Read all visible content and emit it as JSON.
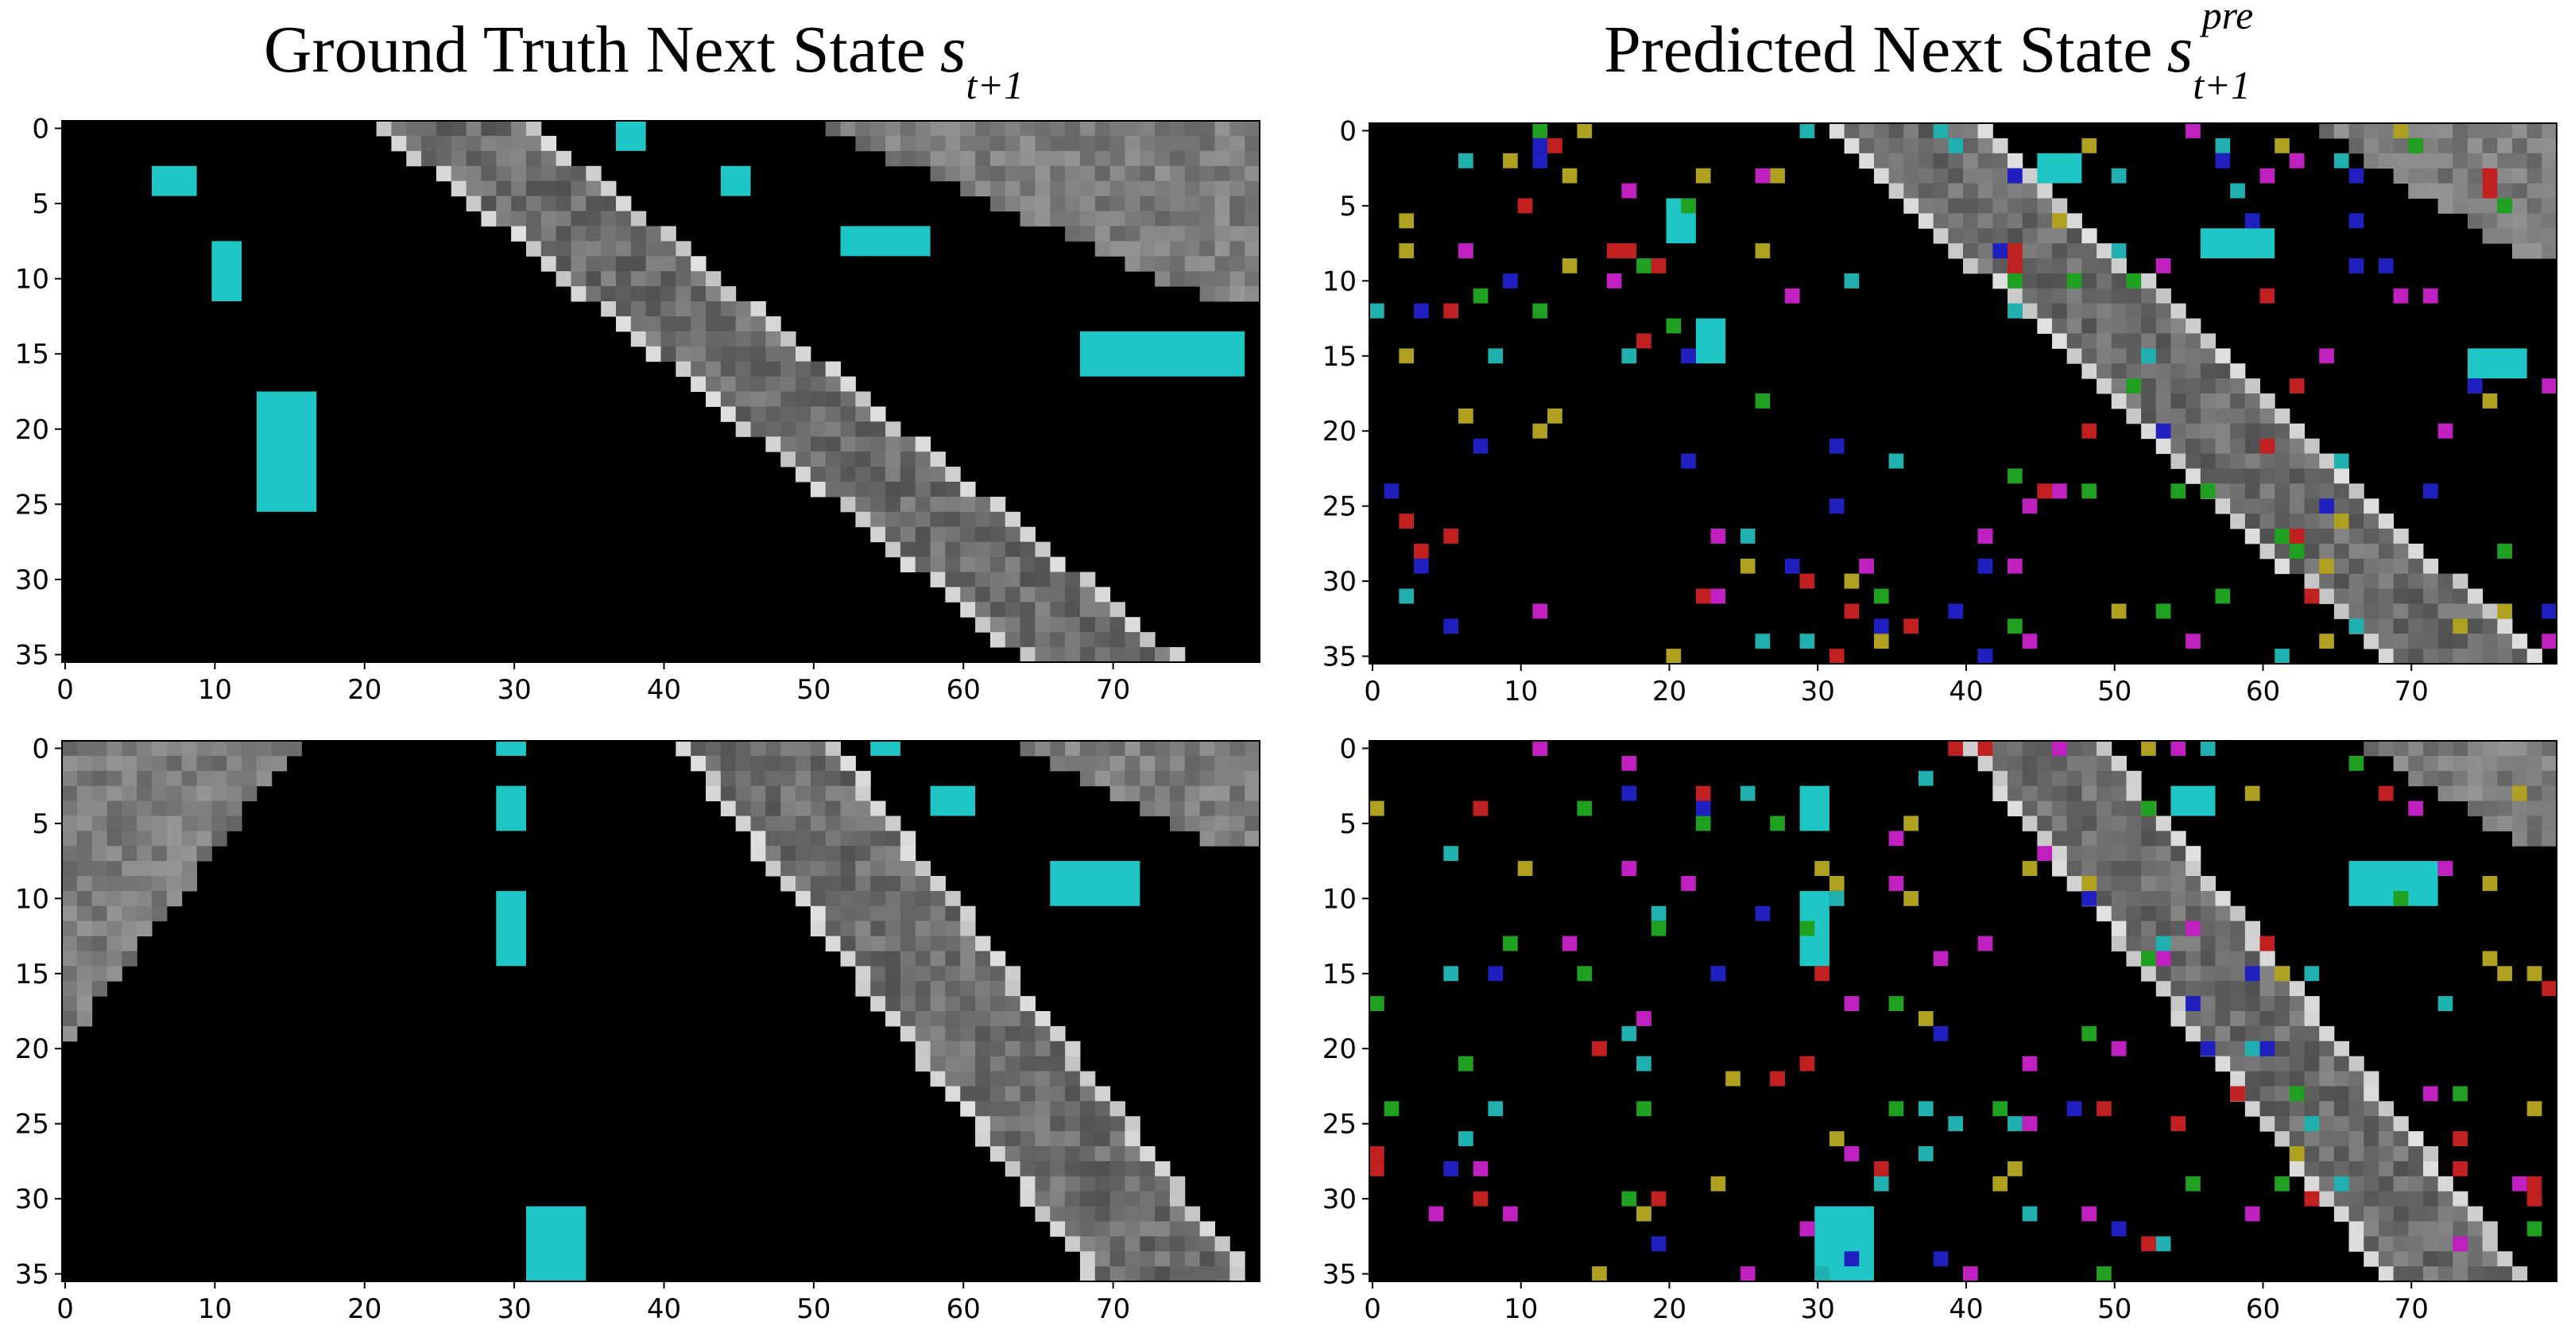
{
  "titles": {
    "left": {
      "text": "Ground Truth Next State",
      "symbol": "s",
      "subscript": "t+1",
      "superscript": ""
    },
    "right": {
      "text": "Predicted Next State",
      "symbol": "s",
      "subscript": "t+1",
      "superscript": "pre"
    }
  },
  "axes": {
    "x_ticks": [
      "0",
      "10",
      "20",
      "30",
      "40",
      "50",
      "60",
      "70"
    ],
    "y_ticks": [
      "0",
      "5",
      "10",
      "15",
      "20",
      "25",
      "30",
      "35"
    ],
    "x_range": [
      0,
      80
    ],
    "y_range": [
      0,
      36
    ]
  },
  "colors": {
    "background": "#000000",
    "road": "#8a8a8a",
    "car": "#1fc6c6",
    "noise": [
      "#b0a020",
      "#c020c0",
      "#2020c0",
      "#20a020",
      "#c02020",
      "#20b0b0"
    ]
  },
  "panels": [
    {
      "name": "top-left",
      "noise": false,
      "roads": [
        {
          "type": "band",
          "x1": 21,
          "x2": 31,
          "y_top": 0,
          "y_bot": 36,
          "dx_per_row": 1.22
        }
      ],
      "corner_triangles": [
        {
          "side": "right",
          "x_start": 51,
          "rows": 12
        }
      ],
      "cars": [
        {
          "x": 6,
          "y": 3,
          "w": 3,
          "h": 2
        },
        {
          "x": 10,
          "y": 8,
          "w": 2,
          "h": 4
        },
        {
          "x": 13,
          "y": 18,
          "w": 4,
          "h": 8
        },
        {
          "x": 37,
          "y": 0,
          "w": 2,
          "h": 2
        },
        {
          "x": 44,
          "y": 3,
          "w": 2,
          "h": 2
        },
        {
          "x": 52,
          "y": 7,
          "w": 6,
          "h": 2
        },
        {
          "x": 68,
          "y": 14,
          "w": 11,
          "h": 3
        }
      ]
    },
    {
      "name": "top-right",
      "noise": true,
      "roads": [
        {
          "type": "band",
          "x1": 31,
          "x2": 41,
          "y_top": 0,
          "y_bot": 36,
          "dx_per_row": 1.05
        }
      ],
      "corner_triangles": [
        {
          "side": "right",
          "x_start": 64,
          "rows": 9
        }
      ],
      "cars": [
        {
          "x": 20,
          "y": 5,
          "w": 2,
          "h": 3
        },
        {
          "x": 56,
          "y": 7,
          "w": 5,
          "h": 2
        },
        {
          "x": 74,
          "y": 15,
          "w": 4,
          "h": 2
        },
        {
          "x": 22,
          "y": 13,
          "w": 2,
          "h": 3
        },
        {
          "x": 45,
          "y": 2,
          "w": 3,
          "h": 2
        }
      ]
    },
    {
      "name": "bottom-left",
      "noise": false,
      "roads": [
        {
          "type": "band",
          "x1": 41,
          "x2": 51,
          "y_top": 0,
          "y_bot": 36,
          "dx_per_row": 0.78
        }
      ],
      "corner_triangles": [
        {
          "side": "left",
          "x_start": 0,
          "rows": 20
        },
        {
          "side": "right",
          "x_start": 64,
          "rows": 7
        }
      ],
      "cars": [
        {
          "x": 29,
          "y": 0,
          "w": 2,
          "h": 1
        },
        {
          "x": 29,
          "y": 3,
          "w": 2,
          "h": 3
        },
        {
          "x": 29,
          "y": 10,
          "w": 2,
          "h": 5
        },
        {
          "x": 31,
          "y": 31,
          "w": 4,
          "h": 5
        },
        {
          "x": 54,
          "y": 0,
          "w": 2,
          "h": 1
        },
        {
          "x": 58,
          "y": 3,
          "w": 3,
          "h": 2
        },
        {
          "x": 66,
          "y": 8,
          "w": 6,
          "h": 3
        }
      ]
    },
    {
      "name": "bottom-right",
      "noise": true,
      "roads": [
        {
          "type": "band",
          "x1": 40,
          "x2": 49,
          "y_top": 0,
          "y_bot": 36,
          "dx_per_row": 0.8
        }
      ],
      "corner_triangles": [
        {
          "side": "right",
          "x_start": 67,
          "rows": 7
        }
      ],
      "cars": [
        {
          "x": 29,
          "y": 3,
          "w": 2,
          "h": 3
        },
        {
          "x": 29,
          "y": 10,
          "w": 2,
          "h": 5
        },
        {
          "x": 30,
          "y": 31,
          "w": 4,
          "h": 5
        },
        {
          "x": 54,
          "y": 3,
          "w": 3,
          "h": 2
        },
        {
          "x": 66,
          "y": 8,
          "w": 6,
          "h": 3
        }
      ]
    }
  ]
}
